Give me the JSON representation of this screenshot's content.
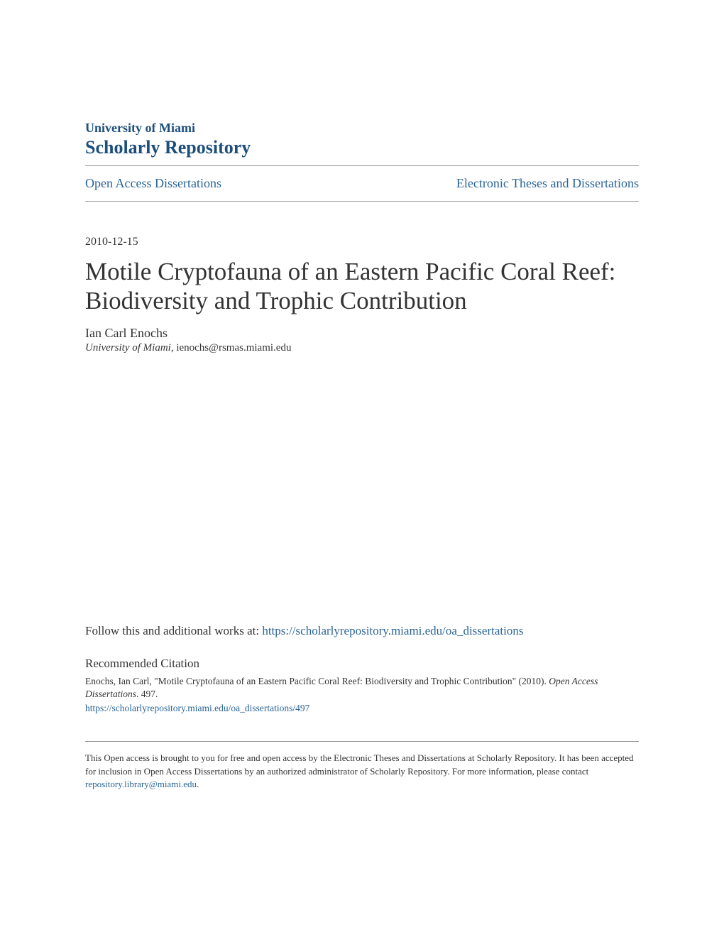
{
  "colors": {
    "brand": "#1d4f7c",
    "link": "#2a6496",
    "text": "#333333",
    "rule": "#999999",
    "background": "#ffffff"
  },
  "header": {
    "institution": "University of Miami",
    "repository": "Scholarly Repository"
  },
  "nav": {
    "left": "Open Access Dissertations",
    "right": "Electronic Theses and Dissertations"
  },
  "item": {
    "date": "2010-12-15",
    "title": "Motile Cryptofauna of an Eastern Pacific Coral Reef: Biodiversity and Trophic Contribution",
    "author": "Ian Carl Enochs",
    "affiliation_inst": "University of Miami",
    "affiliation_email": ", ienochs@rsmas.miami.edu"
  },
  "follow": {
    "prefix": "Follow this and additional works at: ",
    "url": "https://scholarlyrepository.miami.edu/oa_dissertations"
  },
  "citation": {
    "heading": "Recommended Citation",
    "text_prefix": "Enochs, Ian Carl, \"Motile Cryptofauna of an Eastern Pacific Coral Reef: Biodiversity and Trophic Contribution\" (2010). ",
    "journal": "Open Access Dissertations",
    "text_suffix": ". 497.",
    "url": "https://scholarlyrepository.miami.edu/oa_dissertations/497"
  },
  "notice": {
    "text": "This Open access is brought to you for free and open access by the Electronic Theses and Dissertations at Scholarly Repository. It has been accepted for inclusion in Open Access Dissertations by an authorized administrator of Scholarly Repository. For more information, please contact ",
    "email": "repository.library@miami.edu",
    "suffix": "."
  }
}
